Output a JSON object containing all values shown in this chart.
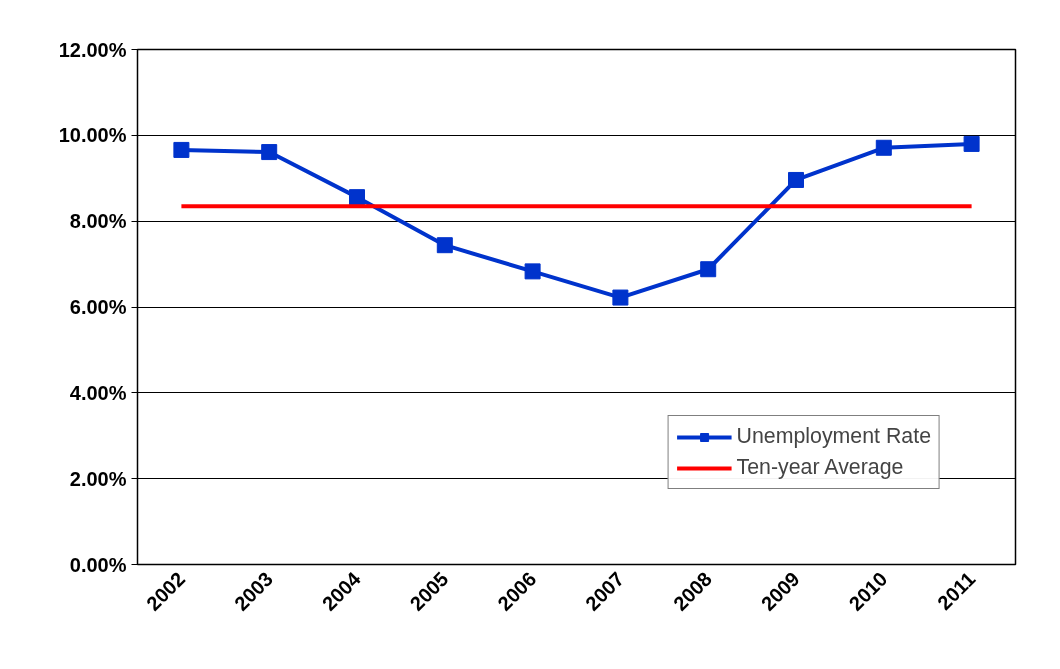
{
  "chart_data": {
    "type": "line",
    "categories": [
      "2002",
      "2003",
      "2004",
      "2005",
      "2006",
      "2007",
      "2008",
      "2009",
      "2010",
      "2011"
    ],
    "series": [
      {
        "name": "Unemployment Rate",
        "color": "#0033cc",
        "marker": "square",
        "values": [
          9.66,
          9.61,
          8.56,
          7.44,
          6.83,
          6.22,
          6.88,
          8.96,
          9.71,
          9.8
        ]
      },
      {
        "name": "Ten-year Average",
        "color": "#ff0000",
        "marker": "none",
        "values": [
          8.35,
          8.35,
          8.35,
          8.35,
          8.35,
          8.35,
          8.35,
          8.35,
          8.35,
          8.35
        ]
      }
    ],
    "ylim": [
      0,
      12
    ],
    "yticks": [
      {
        "value": 0,
        "label": "0.00%"
      },
      {
        "value": 2,
        "label": "2.00%"
      },
      {
        "value": 4,
        "label": "4.00%"
      },
      {
        "value": 6,
        "label": "6.00%"
      },
      {
        "value": 8,
        "label": "8.00%"
      },
      {
        "value": 10,
        "label": "10.00%"
      },
      {
        "value": 12,
        "label": "12.00%"
      }
    ],
    "grid": "y",
    "legend": "bottom right",
    "line_style": "solid"
  }
}
